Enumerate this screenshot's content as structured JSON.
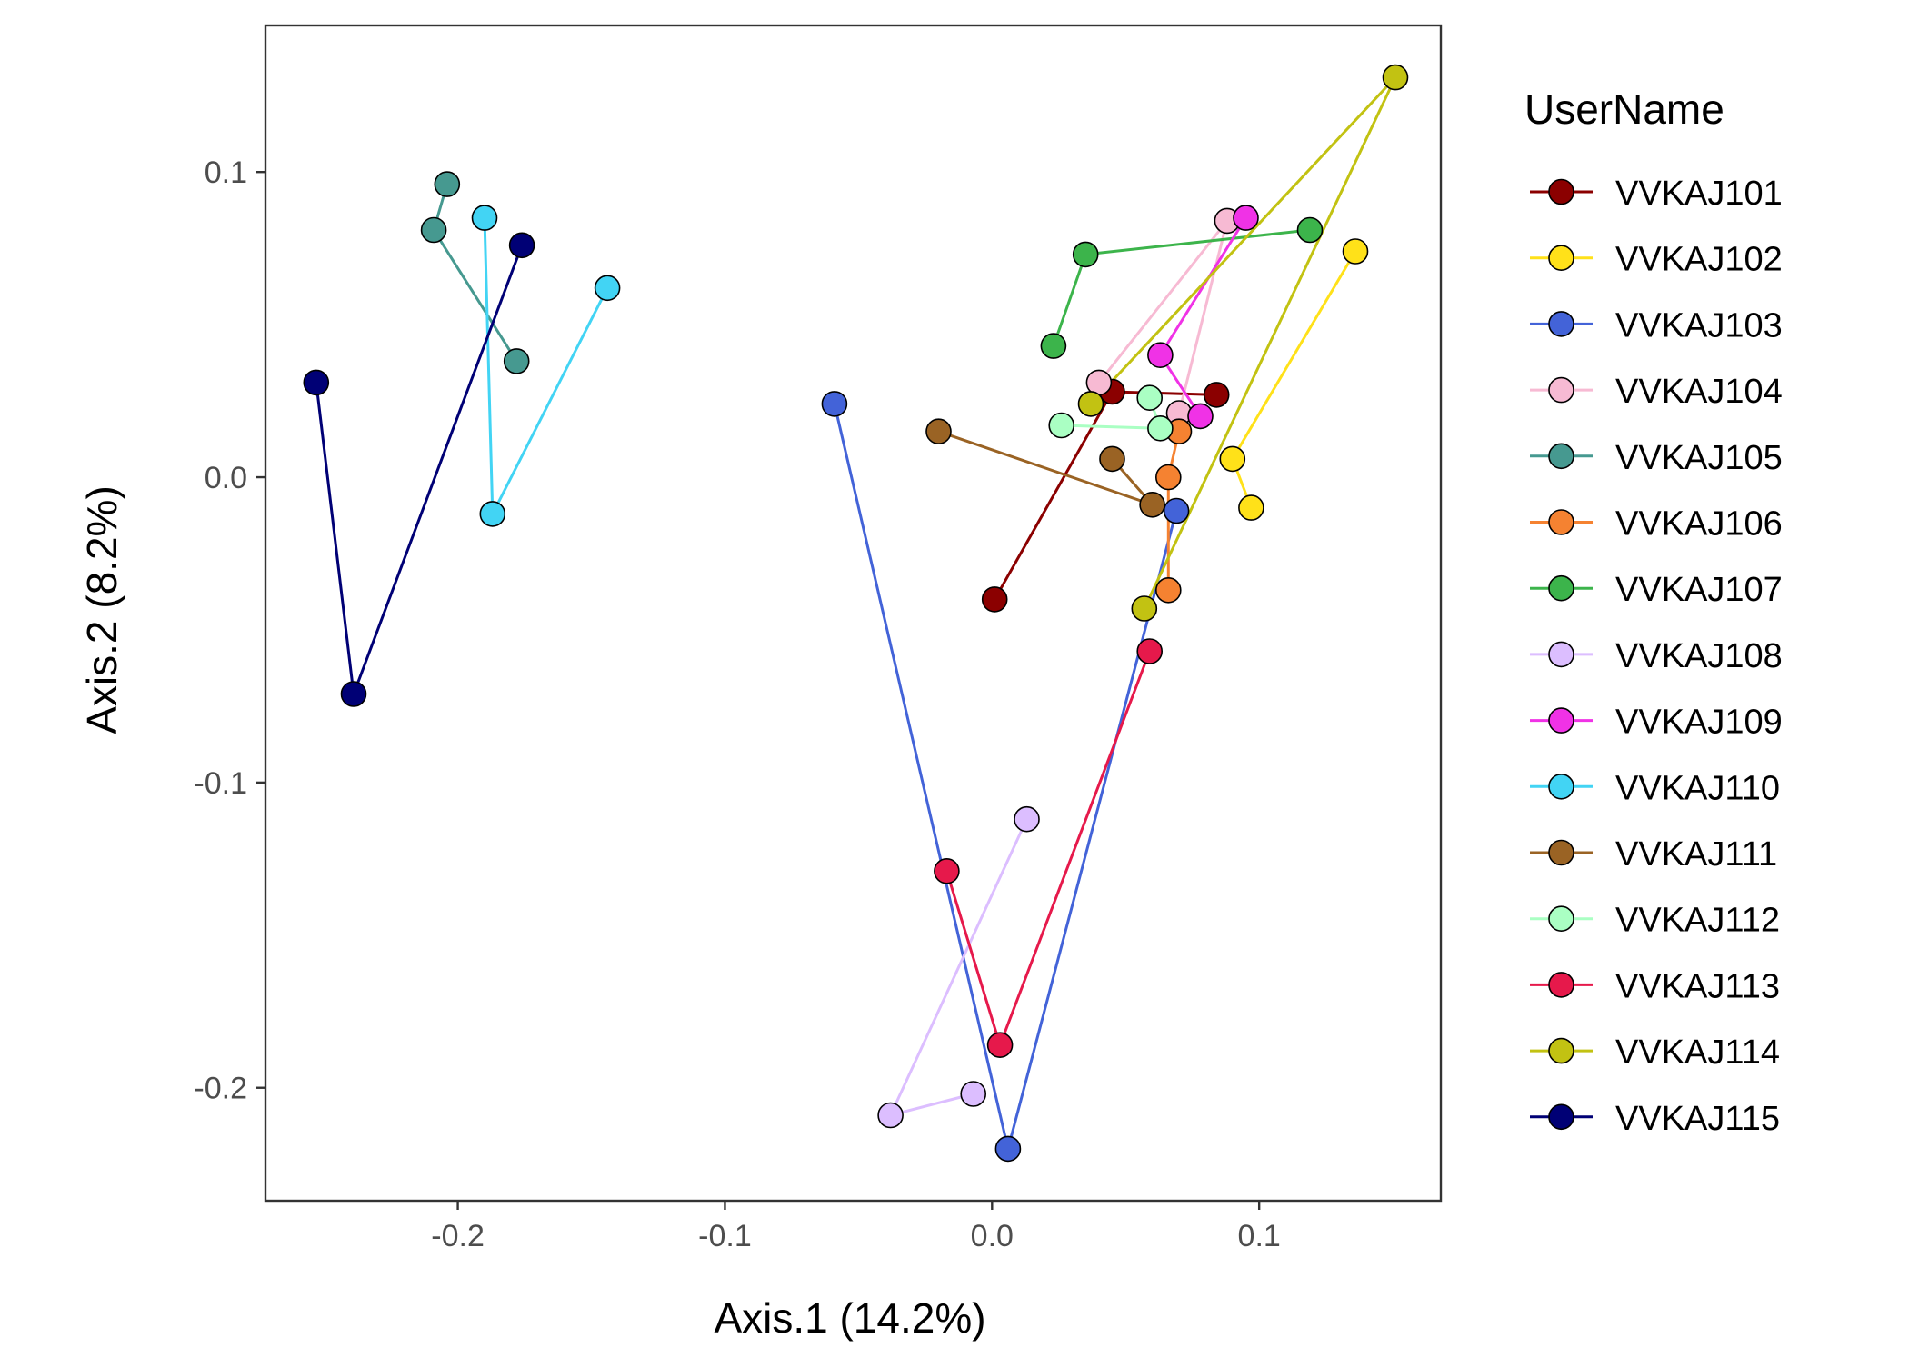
{
  "chart_data": {
    "type": "scatter",
    "xlabel": "Axis.1 (14.2%)",
    "ylabel": "Axis.2 (8.2%)",
    "xlim": [
      -0.272,
      0.168
    ],
    "ylim": [
      -0.237,
      0.148
    ],
    "x_ticks": [
      -0.2,
      -0.1,
      0.0,
      0.1
    ],
    "x_tick_labels": [
      "-0.2",
      "-0.1",
      "0.0",
      "0.1"
    ],
    "y_ticks": [
      -0.2,
      -0.1,
      0.0,
      0.1
    ],
    "y_tick_labels": [
      "-0.2",
      "-0.1",
      "0.0",
      "0.1"
    ],
    "grid": false,
    "legend": {
      "title": "UserName",
      "placement": "right"
    },
    "series": [
      {
        "name": "VVKAJ101",
        "color": "#8B0000",
        "points": [
          [
            0.001,
            -0.04
          ],
          [
            0.045,
            0.028
          ],
          [
            0.084,
            0.027
          ]
        ]
      },
      {
        "name": "VVKAJ102",
        "color": "#FFE119",
        "points": [
          [
            0.136,
            0.074
          ],
          [
            0.09,
            0.006
          ],
          [
            0.097,
            -0.01
          ]
        ]
      },
      {
        "name": "VVKAJ103",
        "color": "#4363D8",
        "points": [
          [
            -0.059,
            0.024
          ],
          [
            0.006,
            -0.22
          ],
          [
            0.069,
            -0.011
          ]
        ]
      },
      {
        "name": "VVKAJ104",
        "color": "#F7BAD3",
        "points": [
          [
            0.04,
            0.031
          ],
          [
            0.088,
            0.084
          ],
          [
            0.07,
            0.021
          ]
        ]
      },
      {
        "name": "VVKAJ105",
        "color": "#469990",
        "points": [
          [
            -0.204,
            0.096
          ],
          [
            -0.209,
            0.081
          ],
          [
            -0.178,
            0.038
          ]
        ]
      },
      {
        "name": "VVKAJ106",
        "color": "#F58231",
        "points": [
          [
            0.07,
            0.015
          ],
          [
            0.066,
            0.0
          ],
          [
            0.066,
            -0.037
          ]
        ]
      },
      {
        "name": "VVKAJ107",
        "color": "#3CB44B",
        "points": [
          [
            0.023,
            0.043
          ],
          [
            0.035,
            0.073
          ],
          [
            0.119,
            0.081
          ]
        ]
      },
      {
        "name": "VVKAJ108",
        "color": "#DCBEFF",
        "points": [
          [
            0.013,
            -0.112
          ],
          [
            -0.038,
            -0.209
          ],
          [
            -0.007,
            -0.202
          ]
        ]
      },
      {
        "name": "VVKAJ109",
        "color": "#F032E6",
        "points": [
          [
            0.095,
            0.085
          ],
          [
            0.063,
            0.04
          ],
          [
            0.078,
            0.02
          ]
        ]
      },
      {
        "name": "VVKAJ110",
        "color": "#42D4F4",
        "points": [
          [
            -0.19,
            0.085
          ],
          [
            -0.187,
            -0.012
          ],
          [
            -0.144,
            0.062
          ]
        ]
      },
      {
        "name": "VVKAJ111",
        "color": "#9A6324",
        "points": [
          [
            -0.02,
            0.015
          ],
          [
            0.06,
            -0.009
          ],
          [
            0.045,
            0.006
          ]
        ]
      },
      {
        "name": "VVKAJ112",
        "color": "#AAFFC3",
        "points": [
          [
            0.026,
            0.017
          ],
          [
            0.063,
            0.016
          ],
          [
            0.059,
            0.026
          ]
        ]
      },
      {
        "name": "VVKAJ113",
        "color": "#E6194B",
        "points": [
          [
            -0.017,
            -0.129
          ],
          [
            0.003,
            -0.186
          ],
          [
            0.059,
            -0.057
          ]
        ]
      },
      {
        "name": "VVKAJ114",
        "color": "#C2C212",
        "points": [
          [
            0.037,
            0.024
          ],
          [
            0.151,
            0.131
          ],
          [
            0.057,
            -0.043
          ]
        ]
      },
      {
        "name": "VVKAJ115",
        "color": "#000075",
        "points": [
          [
            -0.253,
            0.031
          ],
          [
            -0.239,
            -0.071
          ],
          [
            -0.176,
            0.076
          ]
        ]
      }
    ]
  }
}
